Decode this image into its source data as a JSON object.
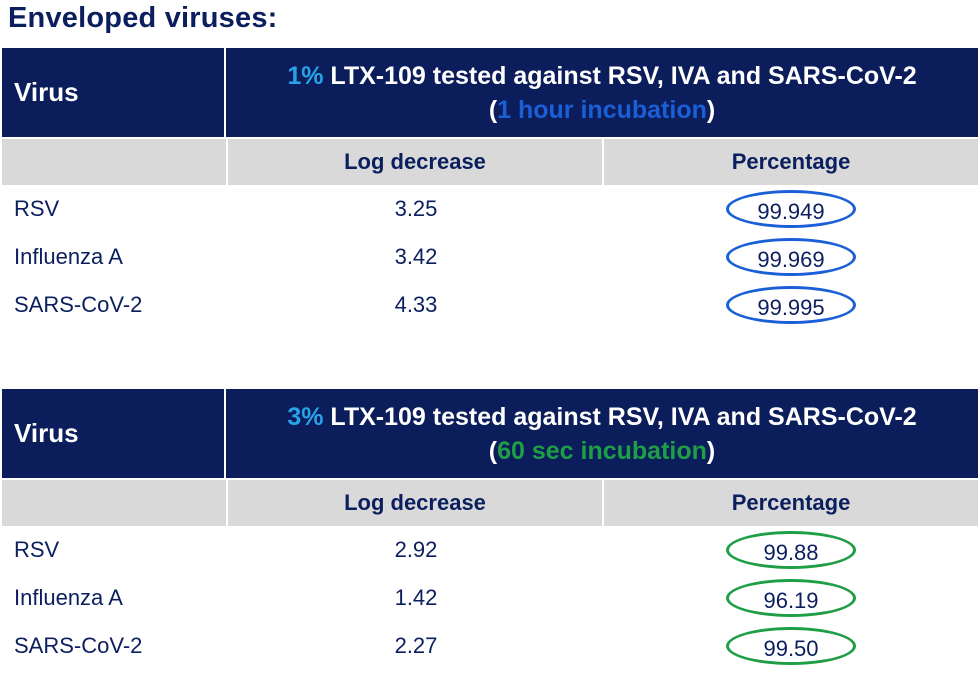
{
  "page_title": "Enveloped viruses:",
  "colors": {
    "navy": "#0c1d5c",
    "accent_light_blue": "#29a3e8",
    "blue_oval": "#1a5fd6",
    "green_oval": "#1e9e45"
  },
  "tables": [
    {
      "virus_header": "Virus",
      "title_pct": "1%",
      "title_rest": " LTX-109 tested against RSV, IVA and SARS-CoV-2",
      "paren_open": "(",
      "incubation": "1 hour incubation",
      "paren_close": ")",
      "incubation_color": "#1a5fd6",
      "col_log": "Log decrease",
      "col_pct": "Percentage",
      "rows": [
        {
          "virus": "RSV",
          "log": "3.25",
          "pct": "99.949"
        },
        {
          "virus": "Influenza A",
          "log": "3.42",
          "pct": "99.969"
        },
        {
          "virus": "SARS-CoV-2",
          "log": "4.33",
          "pct": "99.995"
        }
      ]
    },
    {
      "virus_header": "Virus",
      "title_pct": "3%",
      "title_rest": " LTX-109 tested against RSV, IVA and SARS-CoV-2",
      "paren_open": "(",
      "incubation": "60 sec incubation",
      "paren_close": ")",
      "incubation_color": "#1e9e45",
      "col_log": "Log decrease",
      "col_pct": "Percentage",
      "rows": [
        {
          "virus": "RSV",
          "log": "2.92",
          "pct": "99.88"
        },
        {
          "virus": "Influenza A",
          "log": "1.42",
          "pct": "96.19"
        },
        {
          "virus": "SARS-CoV-2",
          "log": "2.27",
          "pct": "99.50"
        }
      ]
    }
  ]
}
